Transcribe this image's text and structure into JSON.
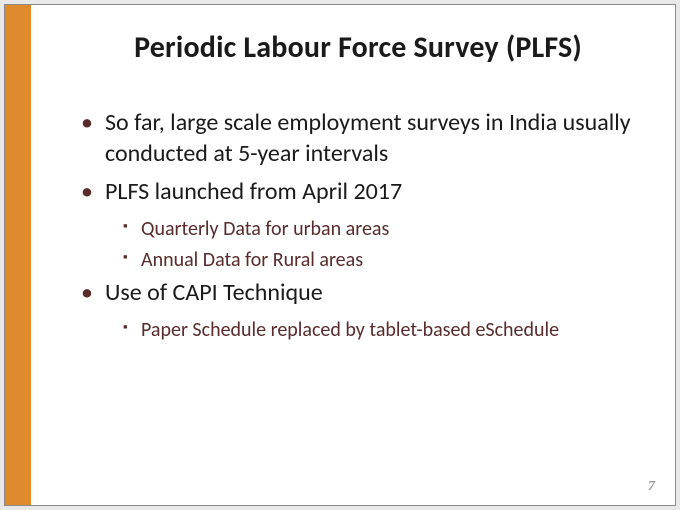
{
  "slide": {
    "title": "Periodic Labour Force Survey (PLFS)",
    "bullets": [
      {
        "level": 1,
        "text": "So far, large scale employment surveys in India usually conducted at 5-year intervals"
      },
      {
        "level": 1,
        "text": "PLFS launched from April 2017"
      },
      {
        "level": 2,
        "text": "Quarterly Data for urban areas"
      },
      {
        "level": 2,
        "text": "Annual Data for Rural areas"
      },
      {
        "level": 1,
        "text": "Use of CAPI Technique"
      },
      {
        "level": 2,
        "text": "Paper Schedule replaced by tablet-based eSchedule"
      }
    ],
    "page_number": "7",
    "colors": {
      "left_bar": "#e08a2e",
      "background": "#ffffff",
      "title_text": "#1a1a1a",
      "level1_text": "#1a1a1a",
      "level2_text": "#5a2b2b",
      "bullet_marker": "#5a2b2b",
      "page_number": "#9a9a9a"
    }
  }
}
